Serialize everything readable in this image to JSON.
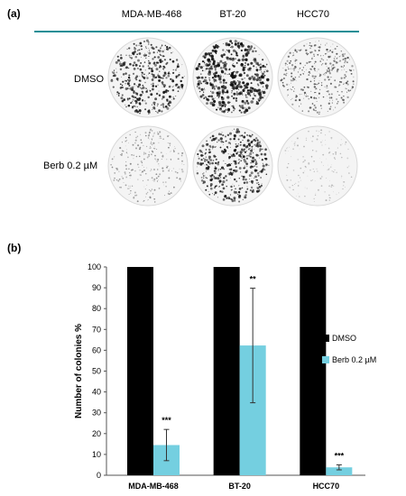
{
  "panel_a": {
    "label": "(a)",
    "columns": [
      "MDA-MB-468",
      "BT-20",
      "HCC70"
    ],
    "rows": [
      "DMSO",
      "Berb 0.2 µM"
    ]
  },
  "panel_b": {
    "label": "(b)"
  },
  "chart_data": {
    "type": "bar",
    "categories": [
      "MDA-MB-468",
      "BT-20",
      "HCC70"
    ],
    "series": [
      {
        "name": "DMSO",
        "values": [
          100,
          100,
          100
        ],
        "color": "#000000"
      },
      {
        "name": "Berb 0.2 µM",
        "values": [
          14.5,
          62.3,
          3.8
        ],
        "errors": [
          7.5,
          27.5,
          1.2
        ],
        "color": "#74cfe0"
      }
    ],
    "significance": [
      "***",
      "**",
      "***"
    ],
    "ylabel": "Number of colonies %",
    "xlabel": "",
    "ylim": [
      0,
      100
    ],
    "yticks": [
      "0",
      "10",
      "20",
      "30",
      "40",
      "50",
      "60",
      "70",
      "80",
      "90",
      "100"
    ],
    "legend_position": "right"
  },
  "colors": {
    "divider": "#1b8e96",
    "plate_dmso_mda": "#222222",
    "plate_berb": "#999999"
  }
}
